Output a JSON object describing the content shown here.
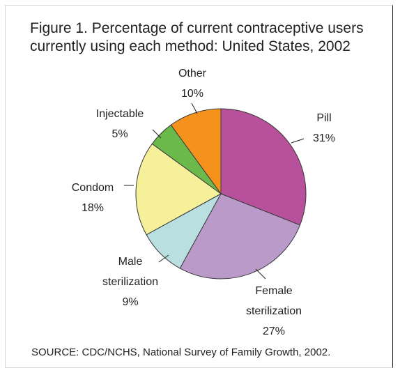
{
  "title_lines": [
    "Figure 1. Percentage of current contraceptive users",
    "currently using each method: United States, 2002"
  ],
  "source": "SOURCE: CDC/NCHS, National Survey of Family Growth, 2002.",
  "chart_data": {
    "type": "pie",
    "title": "Figure 1. Percentage of current contraceptive users currently using each method: United States, 2002",
    "slices": [
      {
        "name_lines": [
          "Pill"
        ],
        "value": 31,
        "label": "31%",
        "color": "#b8519b"
      },
      {
        "name_lines": [
          "Female",
          "sterilization"
        ],
        "value": 27,
        "label": "27%",
        "color": "#b99ac9"
      },
      {
        "name_lines": [
          "Male",
          "sterilization"
        ],
        "value": 9,
        "label": "9%",
        "color": "#b9dfe1"
      },
      {
        "name_lines": [
          "Condom"
        ],
        "value": 18,
        "label": "18%",
        "color": "#f7f09b"
      },
      {
        "name_lines": [
          "Injectable"
        ],
        "value": 5,
        "label": "5%",
        "color": "#6ab94a"
      },
      {
        "name_lines": [
          "Other"
        ],
        "value": 10,
        "label": "10%",
        "color": "#f5921e"
      }
    ]
  }
}
